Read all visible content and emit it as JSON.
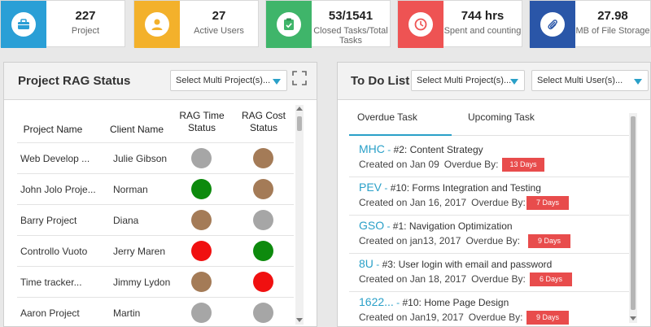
{
  "stats": [
    {
      "value": "227",
      "label": "Project",
      "color": "#2a9fd6",
      "icon": "briefcase-icon"
    },
    {
      "value": "27",
      "label": "Active Users",
      "color": "#f3b12b",
      "icon": "user-icon"
    },
    {
      "value": "53/1541",
      "label": "Closed Tasks/Total Tasks",
      "color": "#3fb56a",
      "icon": "clipboard-check-icon"
    },
    {
      "value": "744 hrs",
      "label": "Spent and counting",
      "color": "#ee5353",
      "icon": "clock-icon"
    },
    {
      "value": "27.98",
      "label": "MB of File Storage",
      "color": "#2a56a8",
      "icon": "paperclip-icon"
    }
  ],
  "rag": {
    "title": "Project RAG Status",
    "select_label": "Select Multi Project(s)...",
    "headers": {
      "project": "Project Name",
      "client": "Client Name",
      "time": "RAG Time Status",
      "cost": "RAG Cost Status"
    },
    "rows": [
      {
        "project": "Web Develop ...",
        "client": "Julie Gibson",
        "time": "#a6a6a6",
        "cost": "#a47b57"
      },
      {
        "project": "John Jolo Proje...",
        "client": "Norman",
        "time": "#0d8a0d",
        "cost": "#a47b57"
      },
      {
        "project": "Barry Project",
        "client": "Diana",
        "time": "#a47b57",
        "cost": "#a6a6a6"
      },
      {
        "project": "Controllo Vuoto",
        "client": "Jerry Maren",
        "time": "#f01010",
        "cost": "#0d8a0d"
      },
      {
        "project": "Time tracker...",
        "client": "Jimmy Lydon",
        "time": "#a47b57",
        "cost": "#f01010"
      },
      {
        "project": "Aaron Project",
        "client": "Martin",
        "time": "#a6a6a6",
        "cost": "#a6a6a6"
      }
    ]
  },
  "todo": {
    "title": "To Do List",
    "select_project": "Select Multi Project(s)...",
    "select_user": "Select Multi User(s)...",
    "tabs": [
      "Overdue Task",
      "Upcoming Task"
    ],
    "overdue_by_label": "Overdue By:",
    "tasks": [
      {
        "code": "MHC",
        "title": "#2: Content Strategy",
        "created": "Created on Jan 09",
        "days": "13 Days"
      },
      {
        "code": "PEV",
        "title": "#10: Forms Integration and Testing",
        "created": "Created on Jan 16, 2017",
        "days": "7 Days"
      },
      {
        "code": "GSO",
        "title": "#1: Navigation Optimization",
        "created": "Created on jan13, 2017",
        "days": "9 Days"
      },
      {
        "code": "8U",
        "title": "#3: User login with email and password",
        "created": "Created on Jan 18, 2017",
        "days": "6 Days"
      },
      {
        "code": "1622...",
        "title": "#10: Home Page Design",
        "created": "Created on Jan19, 2017",
        "days": "9 Days"
      }
    ]
  }
}
